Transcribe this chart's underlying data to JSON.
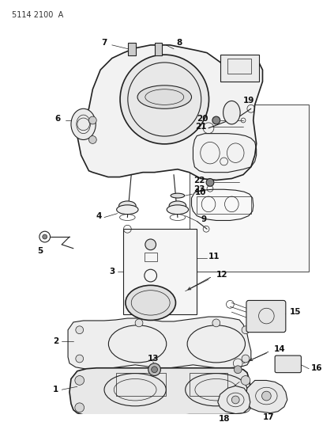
{
  "title": "5114 2100  A",
  "bg_color": "#ffffff",
  "line_color": "#222222",
  "label_color": "#111111",
  "fig_width": 4.1,
  "fig_height": 5.33,
  "dpi": 100,
  "label_fontsize": 7.5,
  "label_bold": true
}
